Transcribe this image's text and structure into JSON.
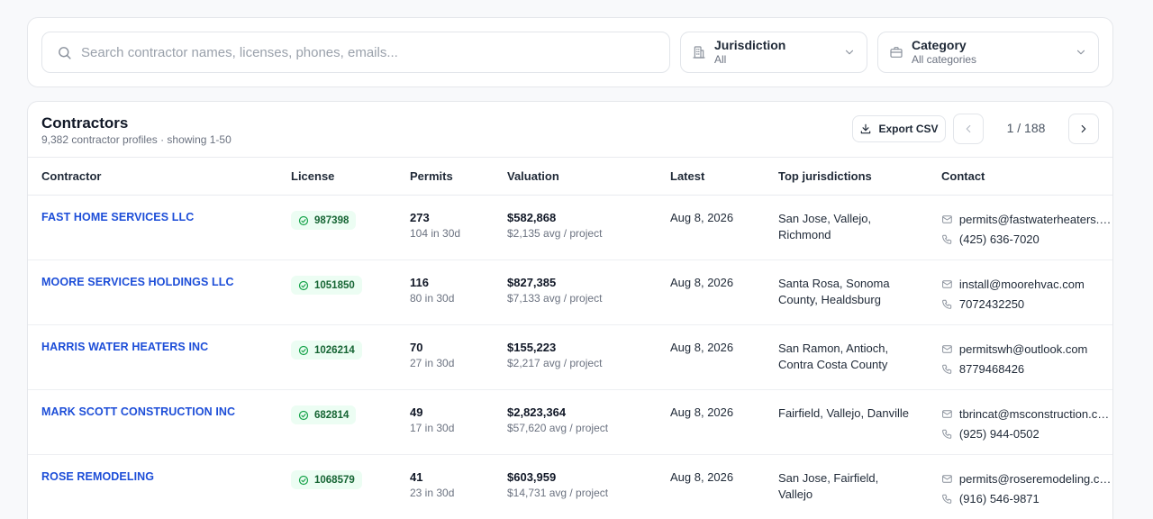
{
  "filters": {
    "search_placeholder": "Search contractor names, licenses, phones, emails...",
    "search_value": "",
    "jurisdiction": {
      "label": "Jurisdiction",
      "value": "All"
    },
    "category": {
      "label": "Category",
      "value": "All categories"
    }
  },
  "table": {
    "title": "Contractors",
    "subtitle": "9,382 contractor profiles · showing 1-50",
    "export_label": "Export CSV",
    "page_indicator": "1 / 188",
    "columns": [
      "Contractor",
      "License",
      "Permits",
      "Valuation",
      "Latest",
      "Top jurisdictions",
      "Contact"
    ],
    "rows": [
      {
        "name": "FAST HOME SERVICES LLC",
        "license": "987398",
        "permits": "273",
        "permits_recent": "104 in 30d",
        "valuation": "$582,868",
        "valuation_avg": "$2,135 avg / project",
        "latest": "Aug 8, 2026",
        "jurisdictions": "San Jose, Vallejo, Richmond",
        "email": "permits@fastwaterheaters.com",
        "phone": "(425) 636-7020"
      },
      {
        "name": "MOORE SERVICES HOLDINGS LLC",
        "license": "1051850",
        "permits": "116",
        "permits_recent": "80 in 30d",
        "valuation": "$827,385",
        "valuation_avg": "$7,133 avg / project",
        "latest": "Aug 8, 2026",
        "jurisdictions": "Santa Rosa, Sonoma County, Healdsburg",
        "email": "install@moorehvac.com",
        "phone": "7072432250"
      },
      {
        "name": "HARRIS WATER HEATERS INC",
        "license": "1026214",
        "permits": "70",
        "permits_recent": "27 in 30d",
        "valuation": "$155,223",
        "valuation_avg": "$2,217 avg / project",
        "latest": "Aug 8, 2026",
        "jurisdictions": "San Ramon, Antioch, Contra Costa County",
        "email": "permitswh@outlook.com",
        "phone": "8779468426"
      },
      {
        "name": "MARK SCOTT CONSTRUCTION INC",
        "license": "682814",
        "permits": "49",
        "permits_recent": "17 in 30d",
        "valuation": "$2,823,364",
        "valuation_avg": "$57,620 avg / project",
        "latest": "Aug 8, 2026",
        "jurisdictions": "Fairfield, Vallejo, Danville",
        "email": "tbrincat@msconstruction.com",
        "phone": "(925) 944-0502"
      },
      {
        "name": "ROSE REMODELING",
        "license": "1068579",
        "permits": "41",
        "permits_recent": "23 in 30d",
        "valuation": "$603,959",
        "valuation_avg": "$14,731 avg / project",
        "latest": "Aug 8, 2026",
        "jurisdictions": "San Jose, Fairfield, Vallejo",
        "email": "permits@roseremodeling.com",
        "phone": "(916) 546-9871"
      }
    ]
  },
  "icons": {
    "search": "search-icon",
    "jurisdiction": "building-icon",
    "category": "briefcase-icon",
    "chevron": "chevron-down-icon",
    "export": "download-icon",
    "license": "check-circle-icon",
    "email": "mail-icon",
    "phone": "phone-icon"
  },
  "colors": {
    "link": "#1d4ed8",
    "license_bg": "#ecfdf3",
    "license_text": "#166534"
  }
}
